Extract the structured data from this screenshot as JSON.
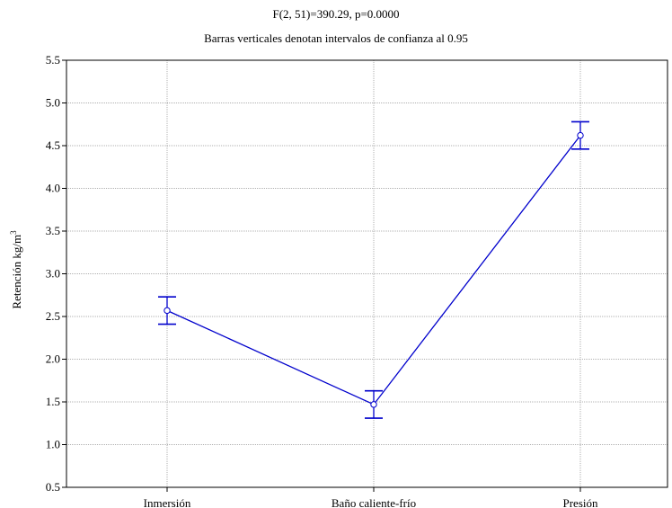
{
  "chart_data": {
    "type": "line",
    "title": "F(2, 51)=390.29, p=0.0000",
    "subtitle": "Barras verticales denotan intervalos de confianza al 0.95",
    "xlabel": "",
    "ylabel": "Retención kg/m",
    "ylabel_superscript": "3",
    "categories": [
      "Inmersión",
      "Baño caliente-frío",
      "Presión"
    ],
    "series": [
      {
        "values": [
          2.57,
          1.47,
          4.62
        ],
        "ci_lower": [
          2.41,
          1.31,
          4.46
        ],
        "ci_upper": [
          2.73,
          1.63,
          4.78
        ],
        "color": "#0000cc"
      }
    ],
    "ylim": [
      0.5,
      5.5
    ],
    "yticks": [
      "0.5",
      "1.0",
      "1.5",
      "2.0",
      "2.5",
      "3.0",
      "3.5",
      "4.0",
      "4.5",
      "5.0",
      "5.5"
    ],
    "grid": true
  }
}
